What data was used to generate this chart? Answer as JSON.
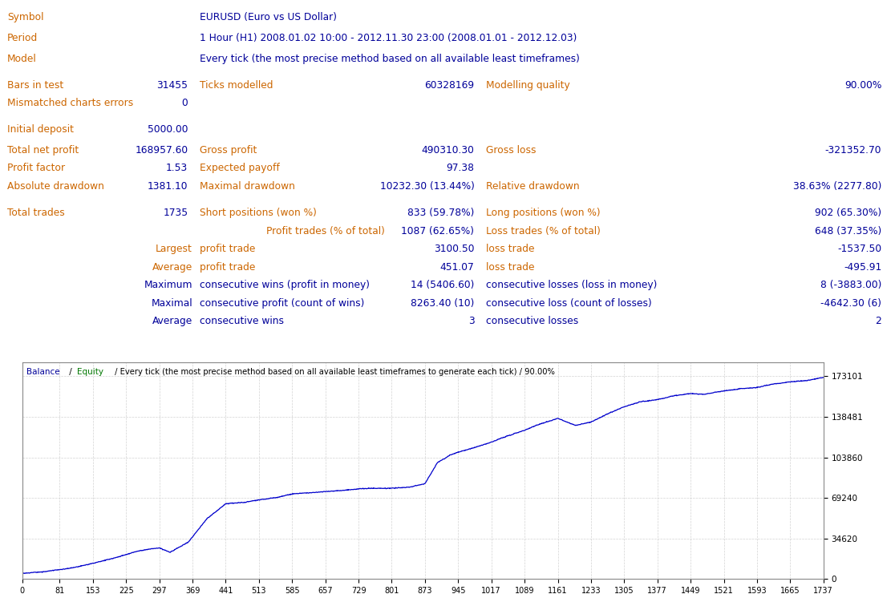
{
  "symbol": "EURUSD (Euro vs US Dollar)",
  "period": "1 Hour (H1) 2008.01.02 10:00 - 2012.11.30 23:00 (2008.01.01 - 2012.12.03)",
  "model": "Every tick (the most precise method based on all available least timeframes)",
  "bars_in_test": "31455",
  "ticks_modelled": "60328169",
  "modelling_quality": "90.00%",
  "mismatched_charts_errors": "0",
  "initial_deposit": "5000.00",
  "total_net_profit": "168957.60",
  "gross_profit": "490310.30",
  "gross_loss": "-321352.70",
  "profit_factor": "1.53",
  "expected_payoff": "97.38",
  "absolute_drawdown": "1381.10",
  "maximal_drawdown": "10232.30 (13.44%)",
  "relative_drawdown": "38.63% (2277.80)",
  "total_trades": "1735",
  "short_positions": "833 (59.78%)",
  "long_positions": "902 (65.30%)",
  "profit_trades": "1087 (62.65%)",
  "loss_trades": "648 (37.35%)",
  "largest_profit_trade": "3100.50",
  "largest_loss_trade": "-1537.50",
  "average_profit_trade": "451.07",
  "average_loss_trade": "-495.91",
  "max_consec_wins": "14 (5406.60)",
  "max_consec_losses": "8 (-3883.00)",
  "maximal_consec_profit": "8263.40 (10)",
  "maximal_consec_loss": "-4642.30 (6)",
  "average_consec_wins": "3",
  "average_consec_losses": "2",
  "x_ticks": [
    0,
    81,
    153,
    225,
    297,
    369,
    441,
    513,
    585,
    657,
    729,
    801,
    873,
    945,
    1017,
    1089,
    1161,
    1233,
    1305,
    1377,
    1449,
    1521,
    1593,
    1665,
    1737
  ],
  "y_ticks": [
    0,
    34620,
    69240,
    103860,
    138481,
    173101
  ],
  "bg_color": "#ffffff",
  "chart_bg": "#ffffff",
  "col_orange": "#cc6600",
  "col_blue": "#000099",
  "col_green": "#007700",
  "col_black": "#000000",
  "grid_color": "#c8c8c8",
  "line_color": "#0000cc",
  "border_color": "#888888"
}
